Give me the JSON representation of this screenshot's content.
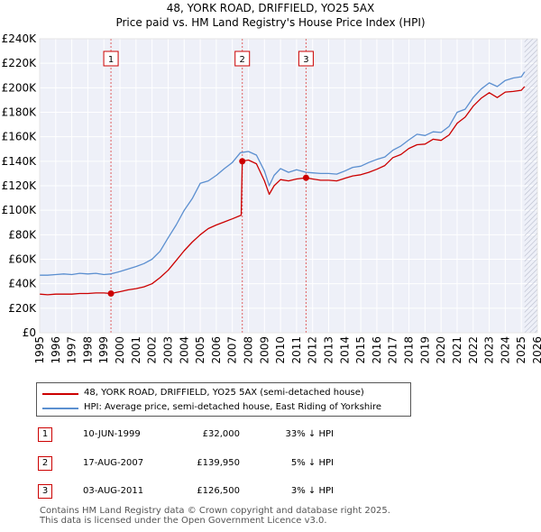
{
  "chart_data": {
    "type": "line",
    "title": "48, YORK ROAD, DRIFFIELD, YO25 5AX",
    "subtitle": "Price paid vs. HM Land Registry's House Price Index (HPI)",
    "xlim": [
      1995,
      2026
    ],
    "ylim": [
      0,
      240000
    ],
    "x_ticks": [
      "1995",
      "1996",
      "1997",
      "1998",
      "1999",
      "2000",
      "2001",
      "2002",
      "2003",
      "2004",
      "2005",
      "2006",
      "2007",
      "2008",
      "2009",
      "2010",
      "2011",
      "2012",
      "2013",
      "2014",
      "2015",
      "2016",
      "2017",
      "2018",
      "2019",
      "2020",
      "2021",
      "2022",
      "2023",
      "2024",
      "2025",
      "2026"
    ],
    "y_ticks": [
      "£0",
      "£20K",
      "£40K",
      "£60K",
      "£80K",
      "£100K",
      "£120K",
      "£140K",
      "£160K",
      "£180K",
      "£200K",
      "£220K",
      "£240K"
    ],
    "grid": true,
    "series": [
      {
        "name": "HPI: Average price, semi-detached house, East Riding of Yorkshire",
        "color": "#5b8fd0",
        "x": [
          1995.0,
          1995.5,
          1996.0,
          1996.5,
          1997.0,
          1997.5,
          1998.0,
          1998.5,
          1999.0,
          1999.45,
          2000.0,
          2000.5,
          2001.0,
          2001.5,
          2002.0,
          2002.5,
          2003.0,
          2003.5,
          2004.0,
          2004.5,
          2005.0,
          2005.5,
          2006.0,
          2006.5,
          2007.0,
          2007.5,
          2008.0,
          2008.5,
          2009.0,
          2009.3,
          2009.6,
          2010.0,
          2010.5,
          2011.0,
          2011.6,
          2012.0,
          2012.5,
          2013.0,
          2013.5,
          2014.0,
          2014.5,
          2015.0,
          2015.5,
          2016.0,
          2016.5,
          2017.0,
          2017.5,
          2018.0,
          2018.5,
          2019.0,
          2019.5,
          2020.0,
          2020.5,
          2021.0,
          2021.5,
          2022.0,
          2022.5,
          2023.0,
          2023.5,
          2024.0,
          2024.5,
          2025.0,
          2025.2
        ],
        "values": [
          47000,
          47000,
          47500,
          48000,
          47500,
          48500,
          48000,
          48500,
          47500,
          48000,
          50000,
          52000,
          54000,
          56500,
          60000,
          66500,
          77500,
          88000,
          100000,
          109500,
          122000,
          124000,
          128500,
          134000,
          139000,
          147000,
          148000,
          145000,
          132000,
          120000,
          128500,
          134000,
          131000,
          133000,
          131000,
          130500,
          130000,
          130000,
          129500,
          132000,
          135000,
          136000,
          139000,
          141500,
          143500,
          149000,
          152500,
          157500,
          162000,
          161000,
          164000,
          163500,
          168500,
          180000,
          182500,
          192000,
          199000,
          204000,
          201000,
          206000,
          208000,
          209000,
          213000
        ]
      },
      {
        "name": "48, YORK ROAD, DRIFFIELD, YO25 5AX (semi-detached house)",
        "color": "#cc0000",
        "x": [
          1995.0,
          1995.5,
          1996.0,
          1996.5,
          1997.0,
          1997.5,
          1998.0,
          1998.5,
          1999.0,
          1999.44,
          2000.0,
          2000.5,
          2001.0,
          2001.5,
          2002.0,
          2002.5,
          2003.0,
          2003.5,
          2004.0,
          2004.5,
          2005.0,
          2005.5,
          2006.0,
          2006.5,
          2007.0,
          2007.55,
          2007.62,
          2008.0,
          2008.5,
          2009.0,
          2009.3,
          2009.6,
          2010.0,
          2010.5,
          2011.0,
          2011.59,
          2012.0,
          2012.5,
          2013.0,
          2013.5,
          2014.0,
          2014.5,
          2015.0,
          2015.5,
          2016.0,
          2016.5,
          2017.0,
          2017.5,
          2018.0,
          2018.5,
          2019.0,
          2019.5,
          2020.0,
          2020.5,
          2021.0,
          2021.5,
          2022.0,
          2022.5,
          2023.0,
          2023.5,
          2024.0,
          2024.5,
          2025.0,
          2025.2
        ],
        "values": [
          31500,
          31000,
          31500,
          31500,
          31500,
          32000,
          32000,
          32500,
          32500,
          32000,
          33500,
          35000,
          36000,
          37500,
          40000,
          45000,
          51000,
          59000,
          67000,
          74000,
          80000,
          85000,
          88000,
          90500,
          93000,
          96000,
          139950,
          141000,
          138000,
          124000,
          113000,
          120000,
          125000,
          124000,
          125500,
          126500,
          125500,
          124500,
          124500,
          124000,
          126000,
          128000,
          129000,
          131000,
          133500,
          136500,
          143000,
          145500,
          150500,
          153500,
          154000,
          158000,
          157000,
          161500,
          171000,
          176000,
          185000,
          191500,
          196000,
          192000,
          196500,
          197000,
          198000,
          201000
        ]
      }
    ],
    "sales": [
      {
        "label": "1",
        "x": 1999.44,
        "value": 32000
      },
      {
        "label": "2",
        "x": 2007.62,
        "value": 139950
      },
      {
        "label": "3",
        "x": 2011.59,
        "value": 126500
      }
    ]
  },
  "legend": {
    "property_label": "48, YORK ROAD, DRIFFIELD, YO25 5AX (semi-detached house)",
    "hpi_label": "HPI: Average price, semi-detached house, East Riding of Yorkshire"
  },
  "sales_table": [
    {
      "num": "1",
      "date": "10-JUN-1999",
      "price": "£32,000",
      "hpi": "33% ↓ HPI"
    },
    {
      "num": "2",
      "date": "17-AUG-2007",
      "price": "£139,950",
      "hpi": "5% ↓ HPI"
    },
    {
      "num": "3",
      "date": "03-AUG-2011",
      "price": "£126,500",
      "hpi": "3% ↓ HPI"
    }
  ],
  "footer": {
    "line1": "Contains HM Land Registry data © Crown copyright and database right 2025.",
    "line2": "This data is licensed under the Open Government Licence v3.0."
  }
}
